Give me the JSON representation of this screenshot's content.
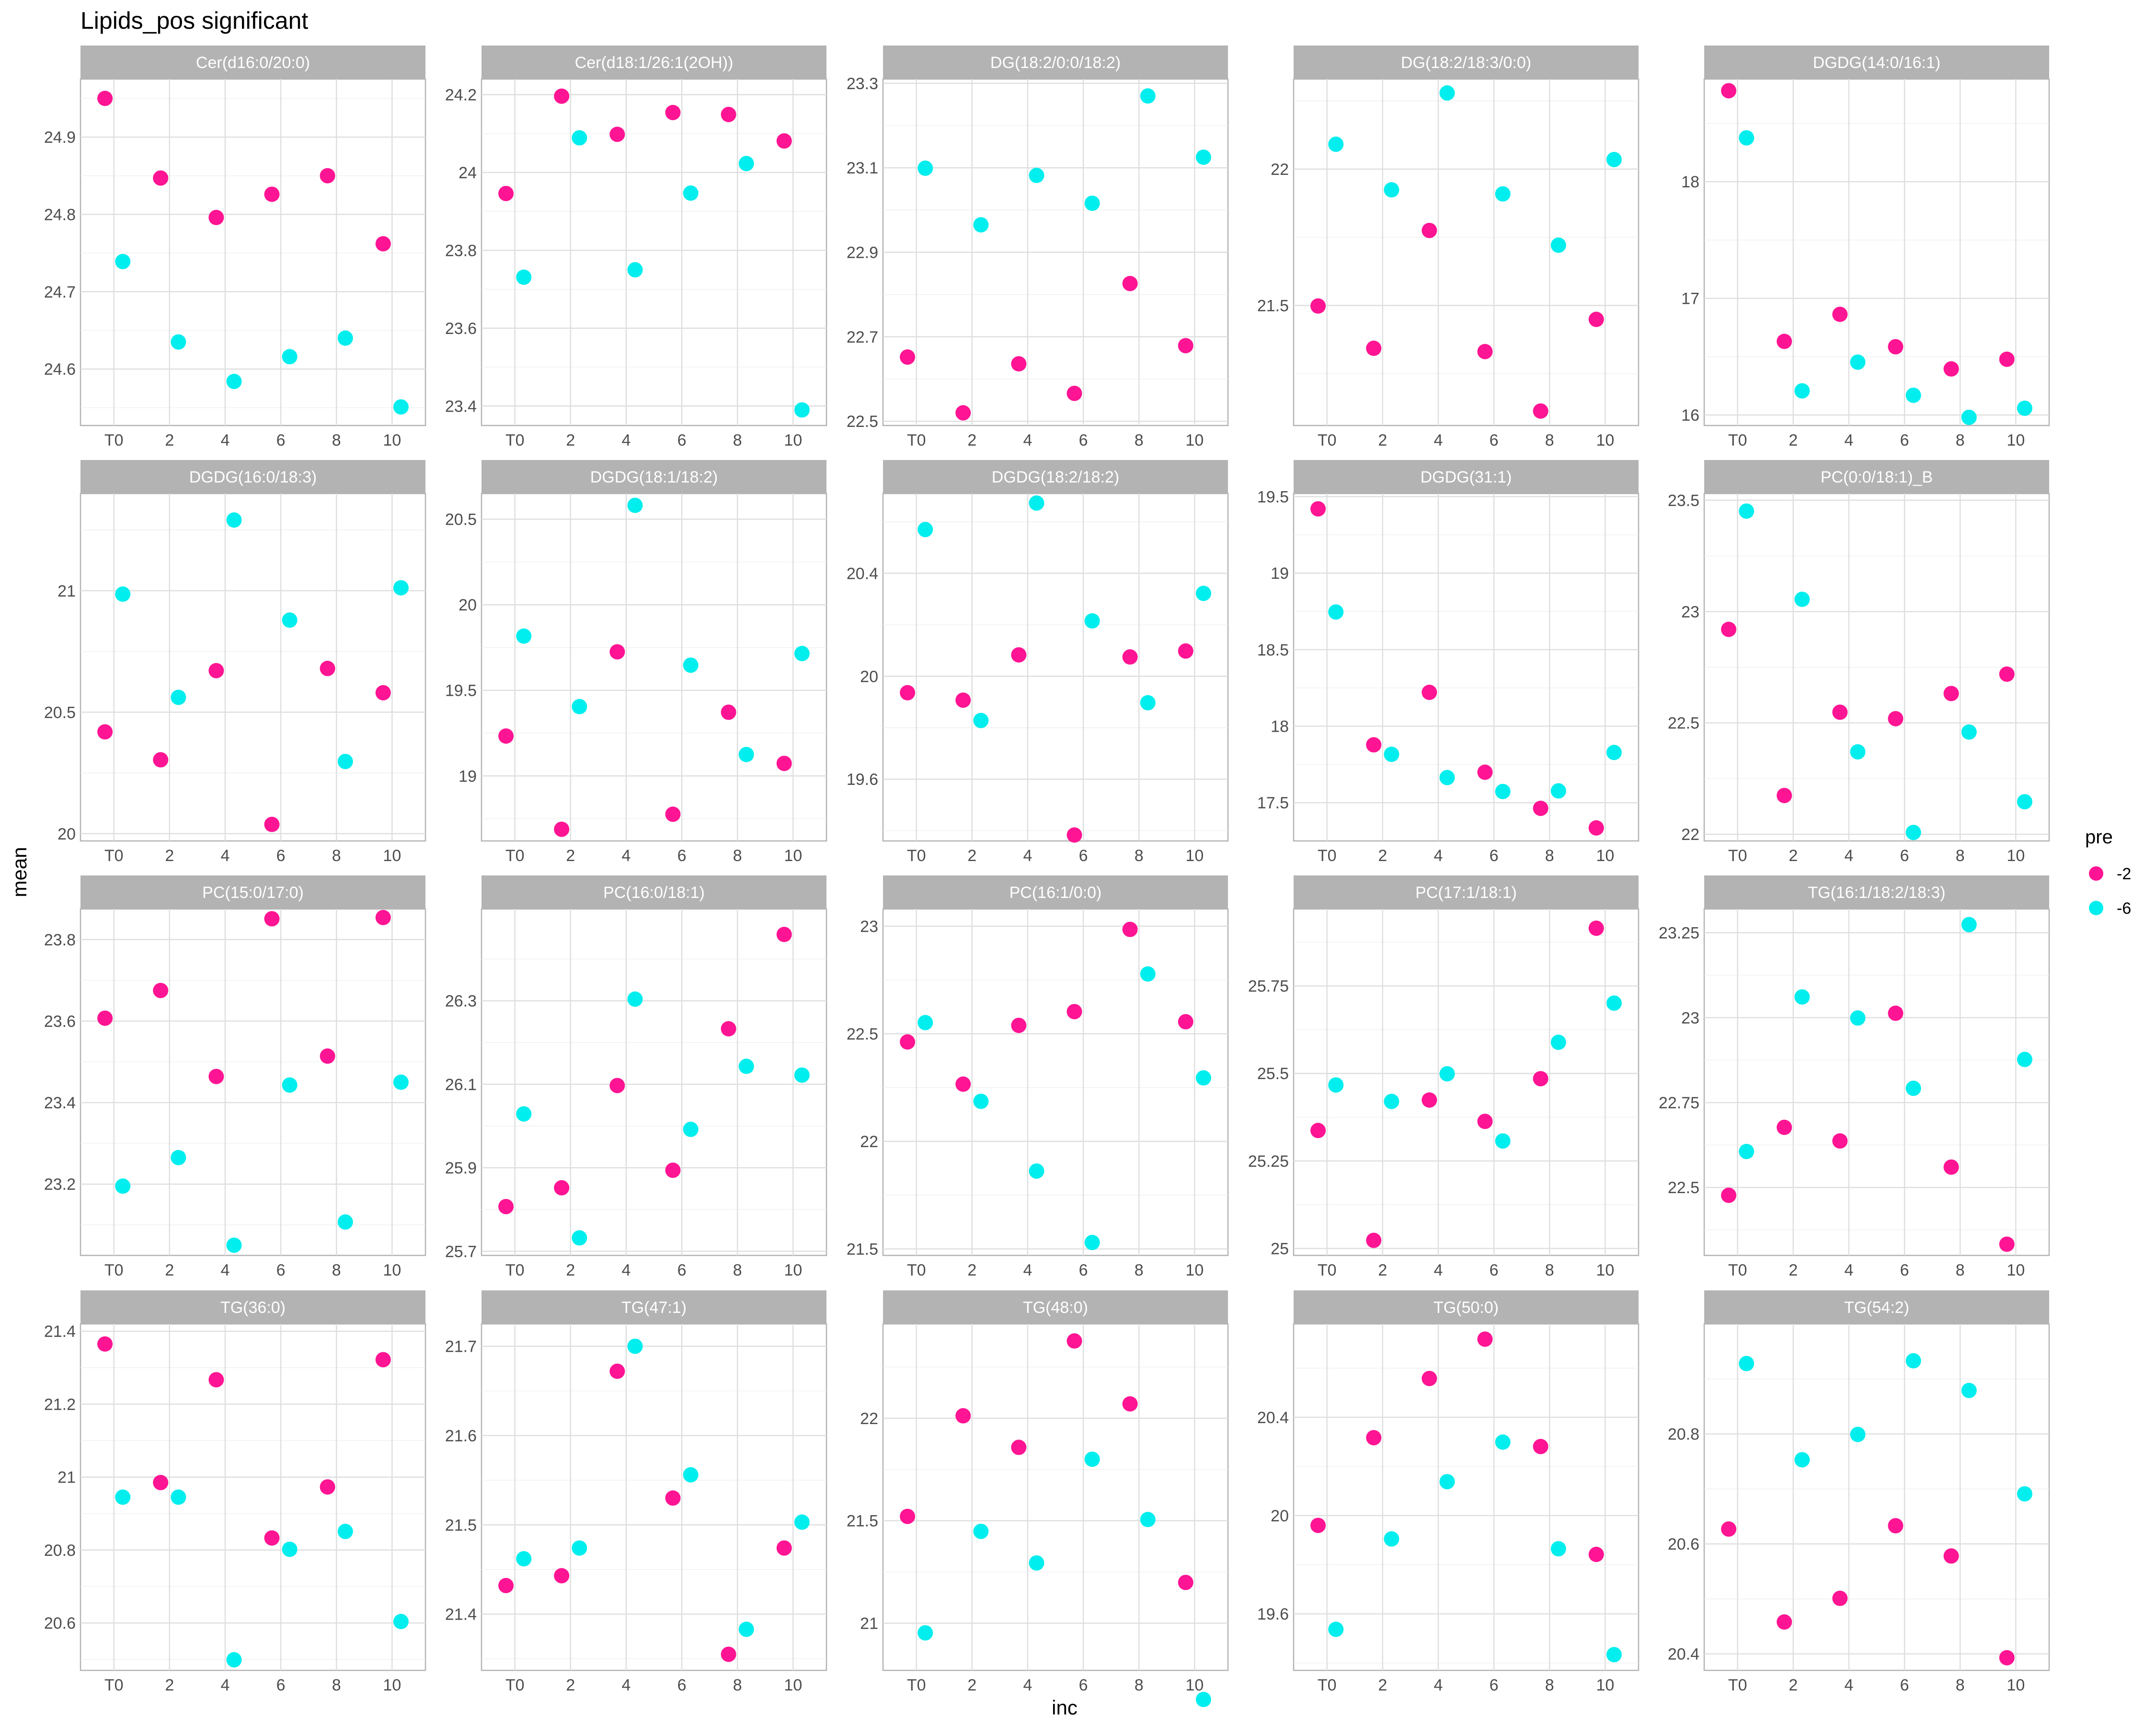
{
  "chart_data": {
    "type": "scatter",
    "title": "Lipids_pos significant",
    "xlabel": "inc",
    "ylabel": "mean",
    "x_categories": [
      "T0",
      "2",
      "4",
      "6",
      "8",
      "10"
    ],
    "legend": {
      "title": "pre",
      "position": "right",
      "entries": [
        {
          "label": "-2",
          "color": "#ff1493"
        },
        {
          "label": "-6",
          "color": "#00eeee"
        }
      ]
    },
    "grid": true,
    "panels": [
      {
        "name": "Cer(d16:0/20:0)",
        "yticks": [
          24.6,
          24.7,
          24.8,
          24.9
        ],
        "ylim": [
          24.527,
          24.975
        ],
        "series": [
          {
            "name": "-2",
            "values": [
              24.95,
              24.847,
              24.796,
              24.826,
              24.85,
              24.762
            ]
          },
          {
            "name": "-6",
            "values": [
              24.739,
              24.635,
              24.584,
              24.616,
              24.64,
              24.551
            ]
          }
        ]
      },
      {
        "name": "Cer(d18:1/26:1(2OH))",
        "yticks": [
          23.4,
          23.6,
          23.8,
          24.0,
          24.2
        ],
        "ylim": [
          23.35,
          24.24
        ],
        "series": [
          {
            "name": "-2",
            "values": [
              23.946,
              24.196,
              24.098,
              24.154,
              24.149,
              24.081
            ]
          },
          {
            "name": "-6",
            "values": [
              23.731,
              24.089,
              23.75,
              23.947,
              24.023,
              23.39
            ]
          }
        ]
      },
      {
        "name": "DG(18:2/0:0/18:2)",
        "yticks": [
          22.5,
          22.7,
          22.9,
          23.1,
          23.3
        ],
        "ylim": [
          22.49,
          23.31
        ],
        "series": [
          {
            "name": "-2",
            "values": [
              22.652,
              22.52,
              22.636,
              22.566,
              22.826,
              22.679
            ]
          },
          {
            "name": "-6",
            "values": [
              23.099,
              22.965,
              23.082,
              23.016,
              23.27,
              23.125
            ]
          }
        ]
      },
      {
        "name": "DG(18:2/18:3/0:0)",
        "yticks": [
          21.5,
          22.0
        ],
        "ylim": [
          21.06,
          22.33
        ],
        "series": [
          {
            "name": "-2",
            "values": [
              21.498,
              21.343,
              21.775,
              21.331,
              21.113,
              21.449
            ]
          },
          {
            "name": "-6",
            "values": [
              22.091,
              21.924,
              22.279,
              21.909,
              21.721,
              22.035
            ]
          }
        ]
      },
      {
        "name": "DGDG(14:0/16:1)",
        "yticks": [
          16,
          17,
          18
        ],
        "ylim": [
          15.91,
          18.88
        ],
        "series": [
          {
            "name": "-2",
            "values": [
              18.78,
              16.631,
              16.863,
              16.585,
              16.395,
              16.478
            ]
          },
          {
            "name": "-6",
            "values": [
              18.376,
              16.207,
              16.453,
              16.169,
              15.98,
              16.058
            ]
          }
        ]
      },
      {
        "name": "DGDG(16:0/18:3)",
        "yticks": [
          20.0,
          20.5,
          21.0
        ],
        "ylim": [
          19.97,
          21.4
        ],
        "series": [
          {
            "name": "-2",
            "values": [
              20.419,
              20.304,
              20.671,
              20.038,
              20.68,
              20.58
            ]
          },
          {
            "name": "-6",
            "values": [
              20.986,
              20.561,
              21.291,
              20.879,
              20.297,
              21.012
            ]
          }
        ]
      },
      {
        "name": "DGDG(18:1/18:2)",
        "yticks": [
          19.0,
          19.5,
          20.0,
          20.5
        ],
        "ylim": [
          18.62,
          20.65
        ],
        "series": [
          {
            "name": "-2",
            "values": [
              19.233,
              18.688,
              19.725,
              18.776,
              19.372,
              19.073
            ]
          },
          {
            "name": "-6",
            "values": [
              19.817,
              19.405,
              20.581,
              19.647,
              19.125,
              19.715
            ]
          }
        ]
      },
      {
        "name": "DGDG(18:2/18:2)",
        "yticks": [
          19.6,
          20.0,
          20.4
        ],
        "ylim": [
          19.36,
          20.71
        ],
        "series": [
          {
            "name": "-2",
            "values": [
              19.936,
              19.907,
              20.083,
              19.383,
              20.075,
              20.098
            ]
          },
          {
            "name": "-6",
            "values": [
              20.57,
              19.828,
              20.673,
              20.215,
              19.897,
              20.322
            ]
          }
        ]
      },
      {
        "name": "DGDG(31:1)",
        "yticks": [
          17.5,
          18.0,
          18.5,
          19.0,
          19.5
        ],
        "ylim": [
          17.25,
          19.52
        ],
        "series": [
          {
            "name": "-2",
            "values": [
              19.42,
              17.878,
              18.221,
              17.699,
              17.463,
              17.335
            ]
          },
          {
            "name": "-6",
            "values": [
              18.746,
              17.816,
              17.664,
              17.573,
              17.577,
              17.828
            ]
          }
        ]
      },
      {
        "name": "PC(0:0/18:1)_B",
        "yticks": [
          22.0,
          22.5,
          23.0,
          23.5
        ],
        "ylim": [
          21.97,
          23.53
        ],
        "series": [
          {
            "name": "-2",
            "values": [
              22.92,
              22.174,
              22.548,
              22.519,
              22.632,
              22.719
            ]
          },
          {
            "name": "-6",
            "values": [
              23.451,
              23.055,
              22.37,
              22.008,
              22.459,
              22.146
            ]
          }
        ]
      },
      {
        "name": "PC(15:0/17:0)",
        "yticks": [
          23.2,
          23.4,
          23.6,
          23.8
        ],
        "ylim": [
          23.025,
          23.875
        ],
        "series": [
          {
            "name": "-2",
            "values": [
              23.607,
              23.675,
              23.464,
              23.851,
              23.514,
              23.854
            ]
          },
          {
            "name": "-6",
            "values": [
              23.195,
              23.265,
              23.05,
              23.443,
              23.107,
              23.45
            ]
          }
        ]
      },
      {
        "name": "PC(16:0/18:1)",
        "yticks": [
          25.7,
          25.9,
          26.1,
          26.3
        ],
        "ylim": [
          25.69,
          26.52
        ],
        "series": [
          {
            "name": "-2",
            "values": [
              25.807,
              25.852,
              26.097,
              25.894,
              26.233,
              26.459
            ]
          },
          {
            "name": "-6",
            "values": [
              26.029,
              25.732,
              26.304,
              25.992,
              26.143,
              26.122
            ]
          }
        ]
      },
      {
        "name": "PC(16:1/0:0)",
        "yticks": [
          21.5,
          22.0,
          22.5,
          23.0
        ],
        "ylim": [
          21.47,
          23.08
        ],
        "series": [
          {
            "name": "-2",
            "values": [
              22.462,
              22.266,
              22.539,
              22.603,
              22.985,
              22.556
            ]
          },
          {
            "name": "-6",
            "values": [
              22.552,
              22.186,
              21.862,
              21.53,
              22.778,
              22.295
            ]
          }
        ]
      },
      {
        "name": "PC(17:1/18:1)",
        "yticks": [
          25.0,
          25.25,
          25.5,
          25.75
        ],
        "ylim": [
          24.98,
          25.97
        ],
        "series": [
          {
            "name": "-2",
            "values": [
              25.337,
              25.023,
              25.424,
              25.363,
              25.485,
              25.915
            ]
          },
          {
            "name": "-6",
            "values": [
              25.467,
              25.42,
              25.499,
              25.307,
              25.589,
              25.701
            ]
          }
        ]
      },
      {
        "name": "TG(16:1/18:2/18:3)",
        "yticks": [
          22.5,
          22.75,
          23.0,
          23.25
        ],
        "ylim": [
          22.3,
          23.32
        ],
        "series": [
          {
            "name": "-2",
            "values": [
              22.477,
              22.677,
              22.637,
              23.013,
              22.56,
              22.333
            ]
          },
          {
            "name": "-6",
            "values": [
              22.606,
              23.061,
              22.999,
              22.792,
              23.274,
              22.877
            ]
          }
        ]
      },
      {
        "name": "TG(36:0)",
        "yticks": [
          20.6,
          20.8,
          21.0,
          21.2,
          21.4
        ],
        "ylim": [
          20.47,
          21.42
        ],
        "series": [
          {
            "name": "-2",
            "values": [
              21.365,
              20.985,
              21.267,
              20.833,
              20.973,
              21.322
            ]
          },
          {
            "name": "-6",
            "values": [
              20.945,
              20.945,
              20.499,
              20.802,
              20.851,
              20.604
            ]
          }
        ]
      },
      {
        "name": "TG(47:1)",
        "yticks": [
          21.4,
          21.5,
          21.6,
          21.7
        ],
        "ylim": [
          21.337,
          21.725
        ],
        "series": [
          {
            "name": "-2",
            "values": [
              21.432,
              21.443,
              21.672,
              21.53,
              21.355,
              21.474
            ]
          },
          {
            "name": "-6",
            "values": [
              21.462,
              21.474,
              21.7,
              21.556,
              21.383,
              21.503
            ]
          }
        ]
      },
      {
        "name": "TG(48:0)",
        "yticks": [
          21.0,
          21.5,
          22.0
        ],
        "ylim": [
          20.77,
          22.46
        ],
        "series": [
          {
            "name": "-2",
            "values": [
              21.521,
              22.012,
              21.858,
              22.377,
              22.07,
              21.199
            ]
          },
          {
            "name": "-6",
            "values": [
              20.953,
              21.448,
              21.294,
              21.8,
              21.506,
              20.628
            ]
          }
        ]
      },
      {
        "name": "TG(50:0)",
        "yticks": [
          19.6,
          20.0,
          20.4
        ],
        "ylim": [
          19.37,
          20.78
        ],
        "series": [
          {
            "name": "-2",
            "values": [
              19.96,
              20.317,
              20.558,
              20.718,
              20.281,
              19.842
            ]
          },
          {
            "name": "-6",
            "values": [
              19.537,
              19.905,
              20.138,
              20.299,
              19.865,
              19.434
            ]
          }
        ]
      },
      {
        "name": "TG(54:2)",
        "yticks": [
          20.4,
          20.6,
          20.8
        ],
        "ylim": [
          20.37,
          21.0
        ],
        "series": [
          {
            "name": "-2",
            "values": [
              20.627,
              20.458,
              20.501,
              20.633,
              20.578,
              20.393
            ]
          },
          {
            "name": "-6",
            "values": [
              20.928,
              20.753,
              20.799,
              20.933,
              20.879,
              20.691
            ]
          }
        ]
      }
    ]
  }
}
